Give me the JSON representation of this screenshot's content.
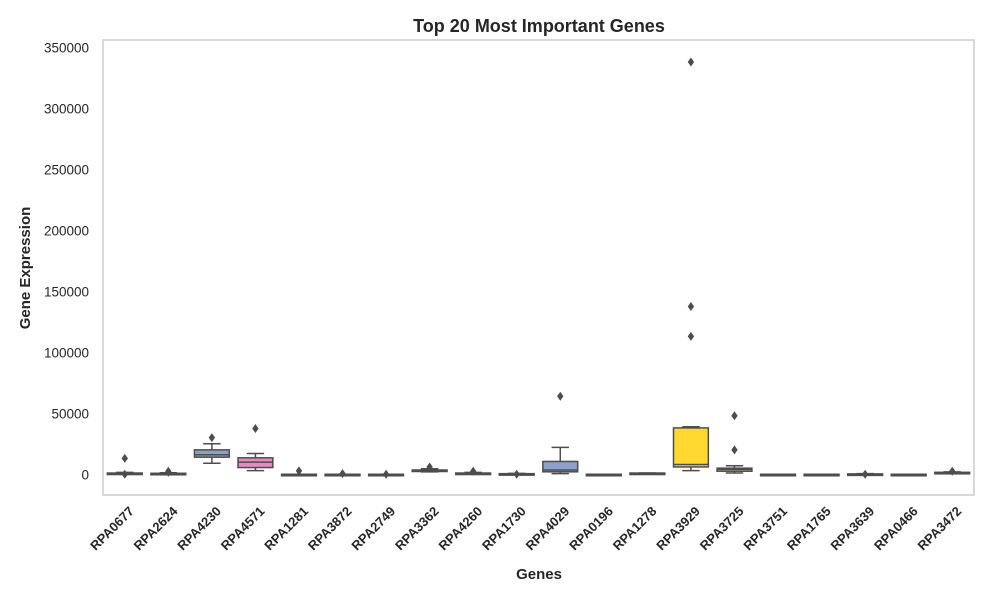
{
  "chart_data": {
    "type": "box",
    "title": "Top 20 Most Important Genes",
    "xlabel": "Genes",
    "ylabel": "Gene Expression",
    "ylim": [
      -17000,
      356000
    ],
    "yticks": [
      0,
      50000,
      100000,
      150000,
      200000,
      250000,
      300000,
      350000
    ],
    "grid": false,
    "categories": [
      "RPA0677",
      "RPA2624",
      "RPA4230",
      "RPA4571",
      "RPA1281",
      "RPA3872",
      "RPA2749",
      "RPA3362",
      "RPA4260",
      "RPA1730",
      "RPA4029",
      "RPA0196",
      "RPA1278",
      "RPA3929",
      "RPA3725",
      "RPA3751",
      "RPA1765",
      "RPA3639",
      "RPA0466",
      "RPA3472"
    ],
    "boxes": [
      {
        "min": 0,
        "q1": 0,
        "median": 500,
        "q3": 1000,
        "max": 1500,
        "fliers": [
          13000,
          0
        ],
        "color": "#66c2a5"
      },
      {
        "min": 0,
        "q1": 0,
        "median": 500,
        "q3": 800,
        "max": 1200,
        "fliers": [
          2500,
          1500
        ],
        "color": "#fc8d62"
      },
      {
        "min": 9000,
        "q1": 14000,
        "median": 16000,
        "q3": 20000,
        "max": 25000,
        "fliers": [
          30000
        ],
        "color": "#8da0cb"
      },
      {
        "min": 3000,
        "q1": 5500,
        "median": 10000,
        "q3": 13500,
        "max": 17000,
        "fliers": [
          37500
        ],
        "color": "#e78ac3"
      },
      {
        "min": 0,
        "q1": 0,
        "median": 0,
        "q3": 0,
        "max": 0,
        "fliers": [
          2800
        ],
        "color": "#a6d854"
      },
      {
        "min": 0,
        "q1": 0,
        "median": 0,
        "q3": 0,
        "max": 0,
        "fliers": [
          500
        ],
        "color": "#ffd92f"
      },
      {
        "min": 0,
        "q1": 0,
        "median": 0,
        "q3": 0,
        "max": 0,
        "fliers": [
          0
        ],
        "color": "#e5c494"
      },
      {
        "min": 2000,
        "q1": 2500,
        "median": 3000,
        "q3": 3500,
        "max": 4500,
        "fliers": [
          6000
        ],
        "color": "#b3b3b3"
      },
      {
        "min": 0,
        "q1": 300,
        "median": 500,
        "q3": 1000,
        "max": 1500,
        "fliers": [
          2500
        ],
        "color": "#66c2a5"
      },
      {
        "min": 0,
        "q1": 0,
        "median": 0,
        "q3": 500,
        "max": 700,
        "fliers": [
          0
        ],
        "color": "#fc8d62"
      },
      {
        "min": 500,
        "q1": 2000,
        "median": 3500,
        "q3": 10500,
        "max": 22000,
        "fliers": [
          64000
        ],
        "color": "#8da0cb"
      },
      {
        "min": 0,
        "q1": 0,
        "median": 0,
        "q3": 0,
        "max": 0,
        "fliers": [],
        "color": "#e78ac3"
      },
      {
        "min": 0,
        "q1": 500,
        "median": 500,
        "q3": 1000,
        "max": 1000,
        "fliers": [],
        "color": "#a6d854"
      },
      {
        "min": 3000,
        "q1": 6000,
        "median": 8000,
        "q3": 38000,
        "max": 39000,
        "fliers": [
          338000,
          137500,
          113000
        ],
        "color": "#ffd92f"
      },
      {
        "min": 1000,
        "q1": 2500,
        "median": 4000,
        "q3": 5000,
        "max": 7000,
        "fliers": [
          48000,
          20000
        ],
        "color": "#e5c494"
      },
      {
        "min": 0,
        "q1": 0,
        "median": 0,
        "q3": 0,
        "max": 0,
        "fliers": [],
        "color": "#b3b3b3"
      },
      {
        "min": 0,
        "q1": 0,
        "median": 0,
        "q3": 0,
        "max": 0,
        "fliers": [],
        "color": "#66c2a5"
      },
      {
        "min": 0,
        "q1": 0,
        "median": 0,
        "q3": 300,
        "max": 500,
        "fliers": [
          0
        ],
        "color": "#fc8d62"
      },
      {
        "min": 0,
        "q1": 0,
        "median": 0,
        "q3": 0,
        "max": 0,
        "fliers": [],
        "color": "#8da0cb"
      },
      {
        "min": 500,
        "q1": 800,
        "median": 1200,
        "q3": 1600,
        "max": 2000,
        "fliers": [
          2500
        ],
        "color": "#e78ac3"
      }
    ]
  }
}
